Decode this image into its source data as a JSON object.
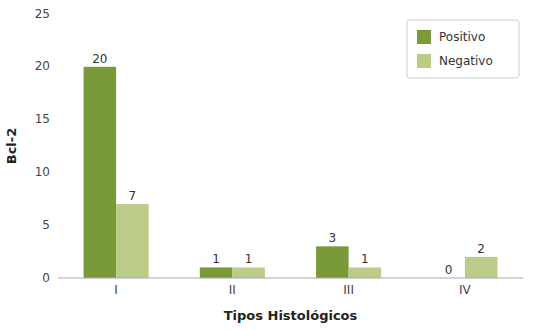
{
  "chart_data": {
    "type": "bar",
    "categories": [
      "I",
      "II",
      "III",
      "IV"
    ],
    "series": [
      {
        "name": "Positivo",
        "color": "#7A9A3A",
        "values": [
          20,
          1,
          3,
          0
        ]
      },
      {
        "name": "Negativo",
        "color": "#BBCC88",
        "values": [
          7,
          1,
          1,
          2
        ]
      }
    ],
    "xlabel": "Tipos Histológicos",
    "ylabel": "Bcl-2",
    "ylim": [
      0,
      25
    ],
    "yticks": [
      0,
      5,
      10,
      15,
      20,
      25
    ],
    "grid": false,
    "legend": "upper right",
    "data_labels": true
  }
}
